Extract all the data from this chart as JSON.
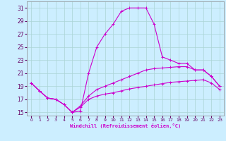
{
  "xlabel": "Windchill (Refroidissement éolien,°C)",
  "xlim": [
    -0.5,
    23.5
  ],
  "ylim": [
    14.5,
    32
  ],
  "yticks": [
    15,
    17,
    19,
    21,
    23,
    25,
    27,
    29,
    31
  ],
  "xticks": [
    0,
    1,
    2,
    3,
    4,
    5,
    6,
    7,
    8,
    9,
    10,
    11,
    12,
    13,
    14,
    15,
    16,
    17,
    18,
    19,
    20,
    21,
    22,
    23
  ],
  "bg_color": "#cceeff",
  "line_color": "#cc00cc",
  "grid_color": "#aad4d4",
  "line1_x": [
    0,
    1,
    2,
    3,
    4,
    5,
    6,
    7,
    8,
    9,
    10,
    11,
    12,
    13,
    14,
    15,
    16,
    17,
    18,
    19,
    20,
    21,
    22,
    23
  ],
  "line1_y": [
    19.5,
    18.3,
    17.2,
    17.0,
    16.2,
    15.0,
    15.2,
    21.0,
    25.0,
    27.0,
    28.5,
    30.5,
    31.0,
    31.0,
    31.0,
    28.5,
    23.5,
    23.0,
    22.5,
    22.5,
    21.5,
    21.5,
    20.5,
    19.0
  ],
  "line2_x": [
    0,
    1,
    2,
    3,
    4,
    5,
    6,
    7,
    8,
    9,
    10,
    11,
    12,
    13,
    14,
    15,
    16,
    17,
    18,
    19,
    20,
    21,
    22,
    23
  ],
  "line2_y": [
    19.5,
    18.3,
    17.2,
    17.0,
    16.2,
    15.0,
    16.0,
    17.5,
    18.5,
    19.0,
    19.5,
    20.0,
    20.5,
    21.0,
    21.5,
    21.7,
    21.8,
    21.9,
    22.0,
    22.0,
    21.5,
    21.5,
    20.5,
    19.0
  ],
  "line3_x": [
    0,
    1,
    2,
    3,
    4,
    5,
    6,
    7,
    8,
    9,
    10,
    11,
    12,
    13,
    14,
    15,
    16,
    17,
    18,
    19,
    20,
    21,
    22,
    23
  ],
  "line3_y": [
    19.5,
    18.3,
    17.2,
    17.0,
    16.2,
    15.0,
    15.8,
    17.0,
    17.5,
    17.8,
    18.0,
    18.3,
    18.6,
    18.8,
    19.0,
    19.2,
    19.4,
    19.6,
    19.7,
    19.8,
    19.9,
    20.0,
    19.5,
    18.5
  ]
}
